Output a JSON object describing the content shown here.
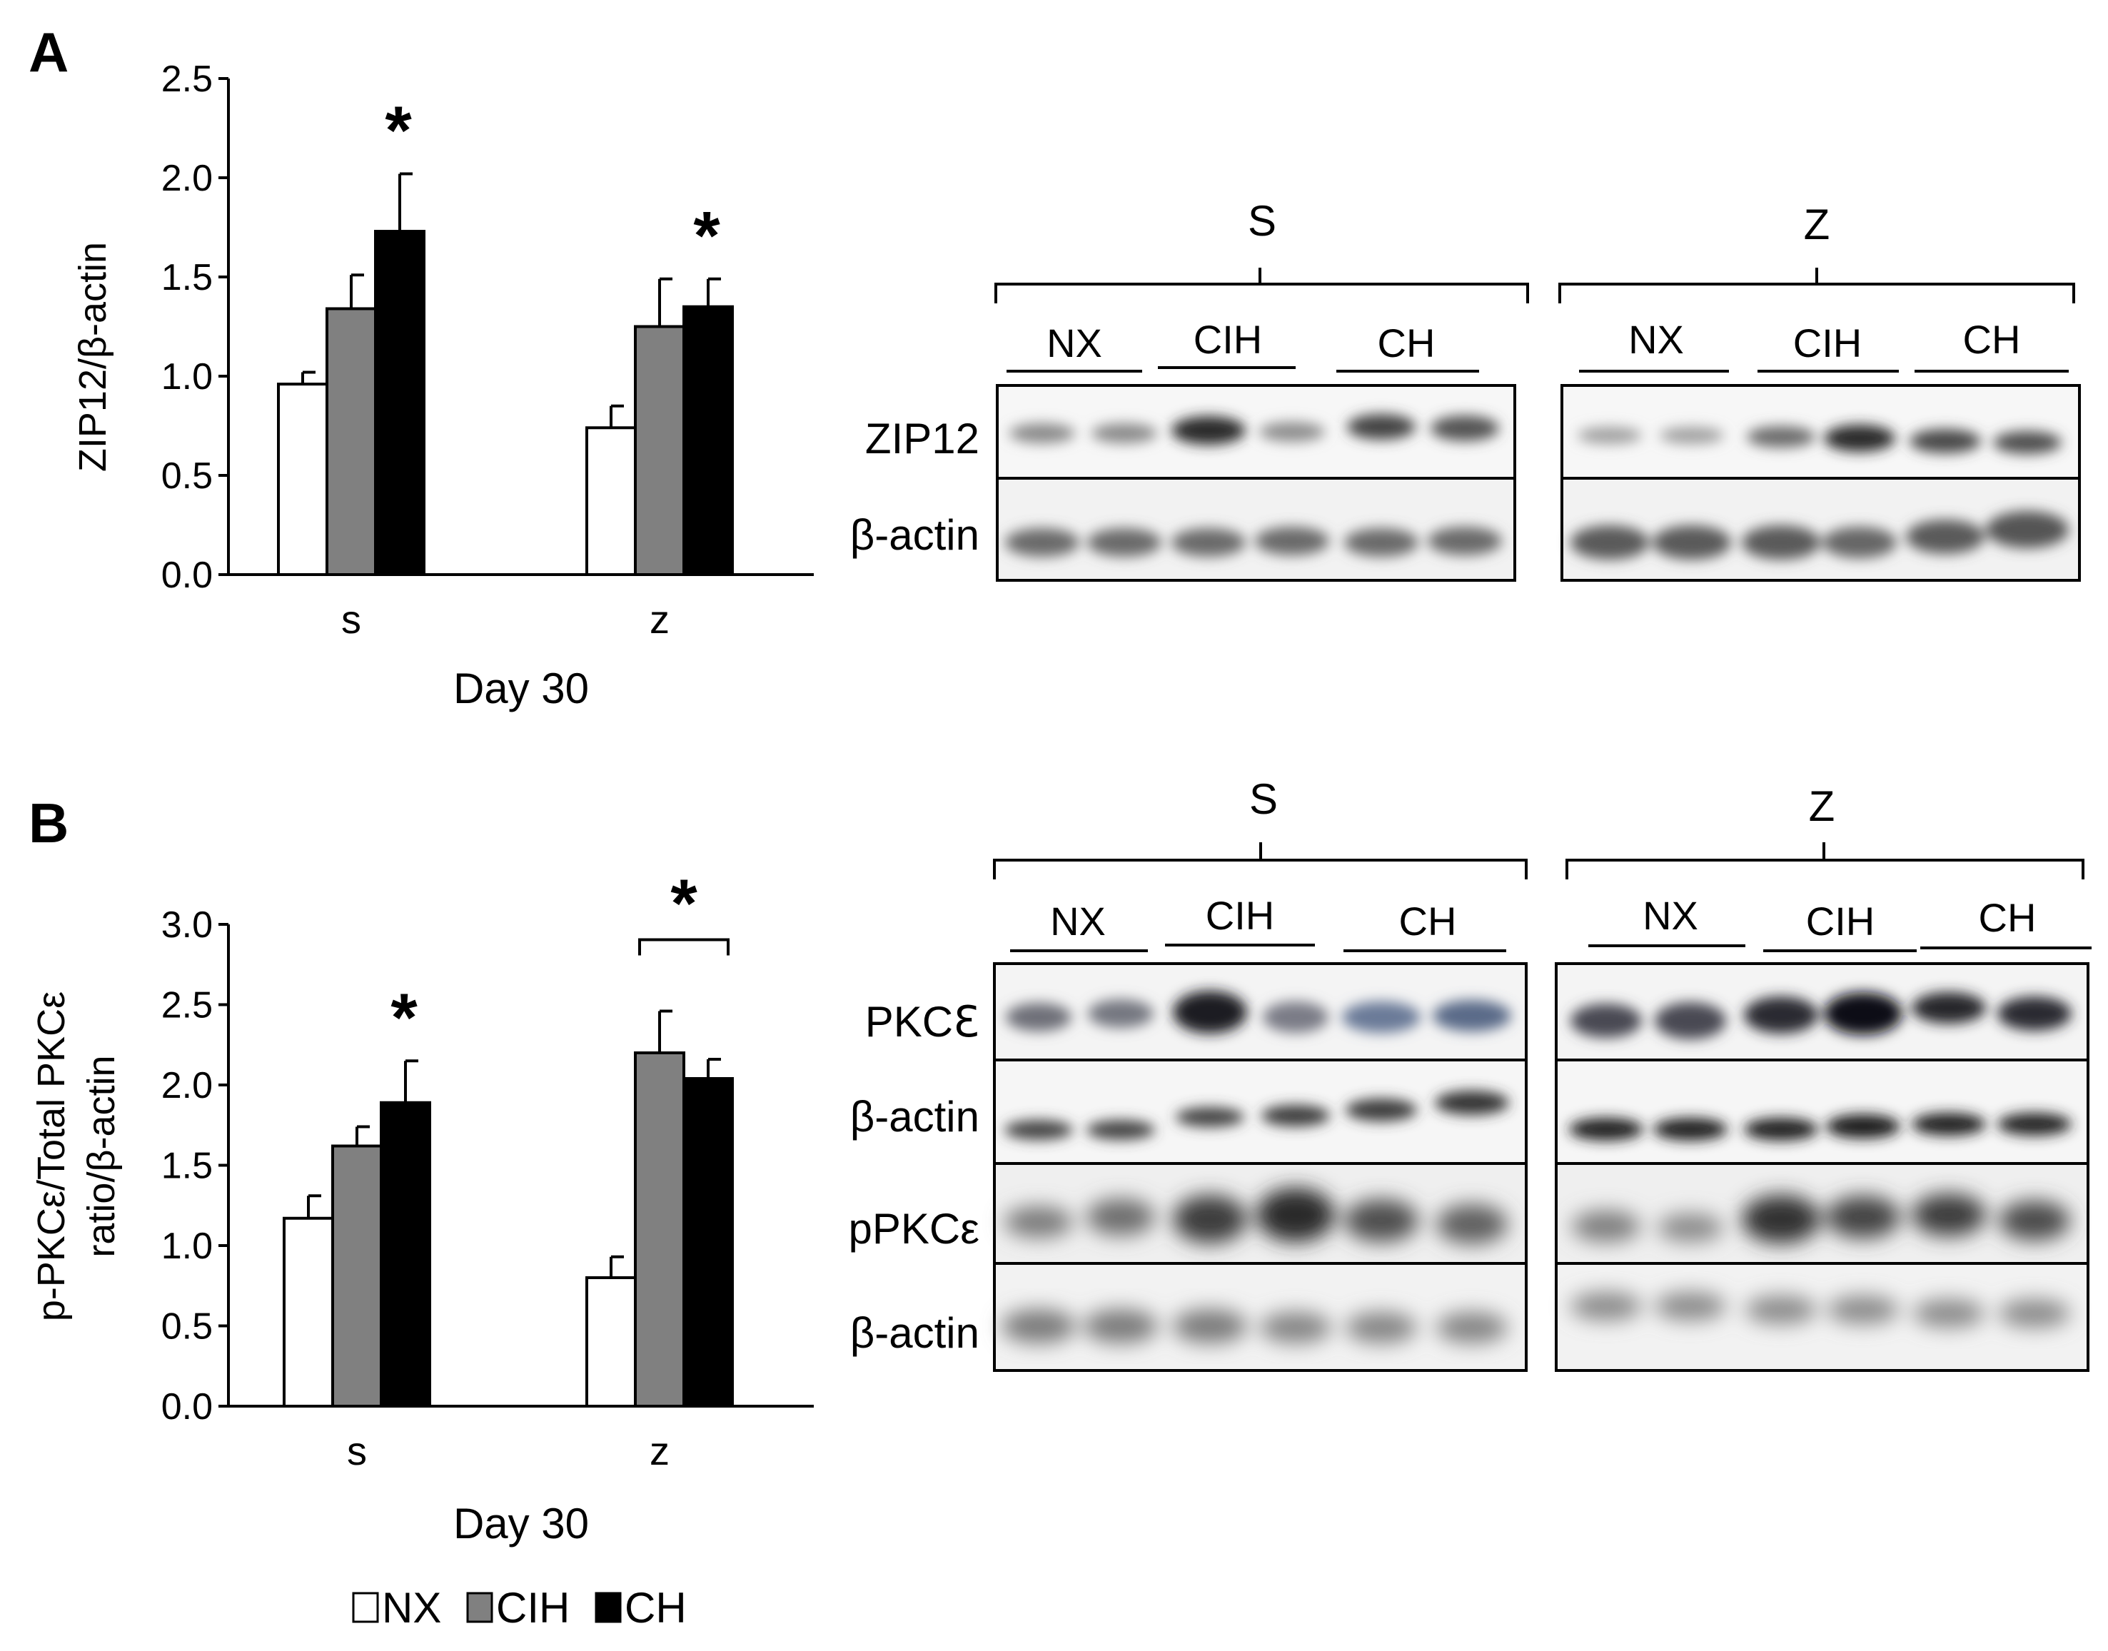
{
  "panels": [
    {
      "label": "A",
      "chart_data": {
        "type": "bar",
        "title": "",
        "categories": [
          "s",
          "z"
        ],
        "xlabel": "Day 30",
        "ylabel": "ZIP12/β-actin",
        "ylabel_lines": [
          "ZIP12/β-actin"
        ],
        "ylim": [
          0,
          2.5
        ],
        "yticks": [
          "0.0",
          "0.5",
          "1.0",
          "1.5",
          "2.0",
          "2.5"
        ],
        "grid": false,
        "series": [
          {
            "name": "NX",
            "color": "#ffffff",
            "values": [
              0.96,
              0.74
            ],
            "errors": [
              0.06,
              0.11
            ]
          },
          {
            "name": "CIH",
            "color": "#808080",
            "values": [
              1.34,
              1.25
            ],
            "errors": [
              0.17,
              0.24
            ]
          },
          {
            "name": "CH",
            "color": "#000000",
            "values": [
              1.73,
              1.35
            ],
            "errors": [
              0.29,
              0.14
            ]
          }
        ],
        "annotations": [
          {
            "text": "*",
            "category": 0,
            "series": 2
          },
          {
            "text": "*",
            "category": 1,
            "series": 2
          }
        ]
      },
      "blot": {
        "groups": [
          {
            "name": "S",
            "lanes": [
              "NX",
              "CIH",
              "CH"
            ]
          },
          {
            "name": "Z",
            "lanes": [
              "NX",
              "CIH",
              "CH"
            ]
          }
        ],
        "rows": [
          "ZIP12",
          "β-actin"
        ]
      }
    },
    {
      "label": "B",
      "chart_data": {
        "type": "bar",
        "title": "",
        "categories": [
          "s",
          "z"
        ],
        "xlabel": "Day 30",
        "ylabel": "p-PKCε/Total PKCε ratio/β-actin",
        "ylabel_lines": [
          "p-PKCε/Total PKCε",
          "ratio/β-actin"
        ],
        "ylim": [
          0,
          3.0
        ],
        "yticks": [
          "0.0",
          "0.5",
          "1.0",
          "1.5",
          "2.0",
          "2.5",
          "3.0"
        ],
        "grid": false,
        "series": [
          {
            "name": "NX",
            "color": "#ffffff",
            "values": [
              1.17,
              0.8
            ],
            "errors": [
              0.14,
              0.13
            ]
          },
          {
            "name": "CIH",
            "color": "#808080",
            "values": [
              1.62,
              2.2
            ],
            "errors": [
              0.12,
              0.26
            ]
          },
          {
            "name": "CH",
            "color": "#000000",
            "values": [
              1.89,
              2.04
            ],
            "errors": [
              0.26,
              0.12
            ]
          }
        ],
        "annotations": [
          {
            "text": "*",
            "category": 0,
            "series": 2
          },
          {
            "text": "*",
            "category": 1,
            "series": [
              1,
              2
            ],
            "bracket": true
          }
        ]
      },
      "blot": {
        "groups": [
          {
            "name": "S",
            "lanes": [
              "NX",
              "CIH",
              "CH"
            ]
          },
          {
            "name": "Z",
            "lanes": [
              "NX",
              "CIH",
              "CH"
            ]
          }
        ],
        "rows": [
          "PKCℇ",
          "β-actin",
          "pPKCε",
          "β-actin"
        ]
      }
    }
  ],
  "legend": {
    "placement": "bottom-left",
    "items": [
      {
        "label": "NX",
        "color": "#ffffff"
      },
      {
        "label": "CIH",
        "color": "#808080"
      },
      {
        "label": "CH",
        "color": "#000000"
      }
    ]
  }
}
